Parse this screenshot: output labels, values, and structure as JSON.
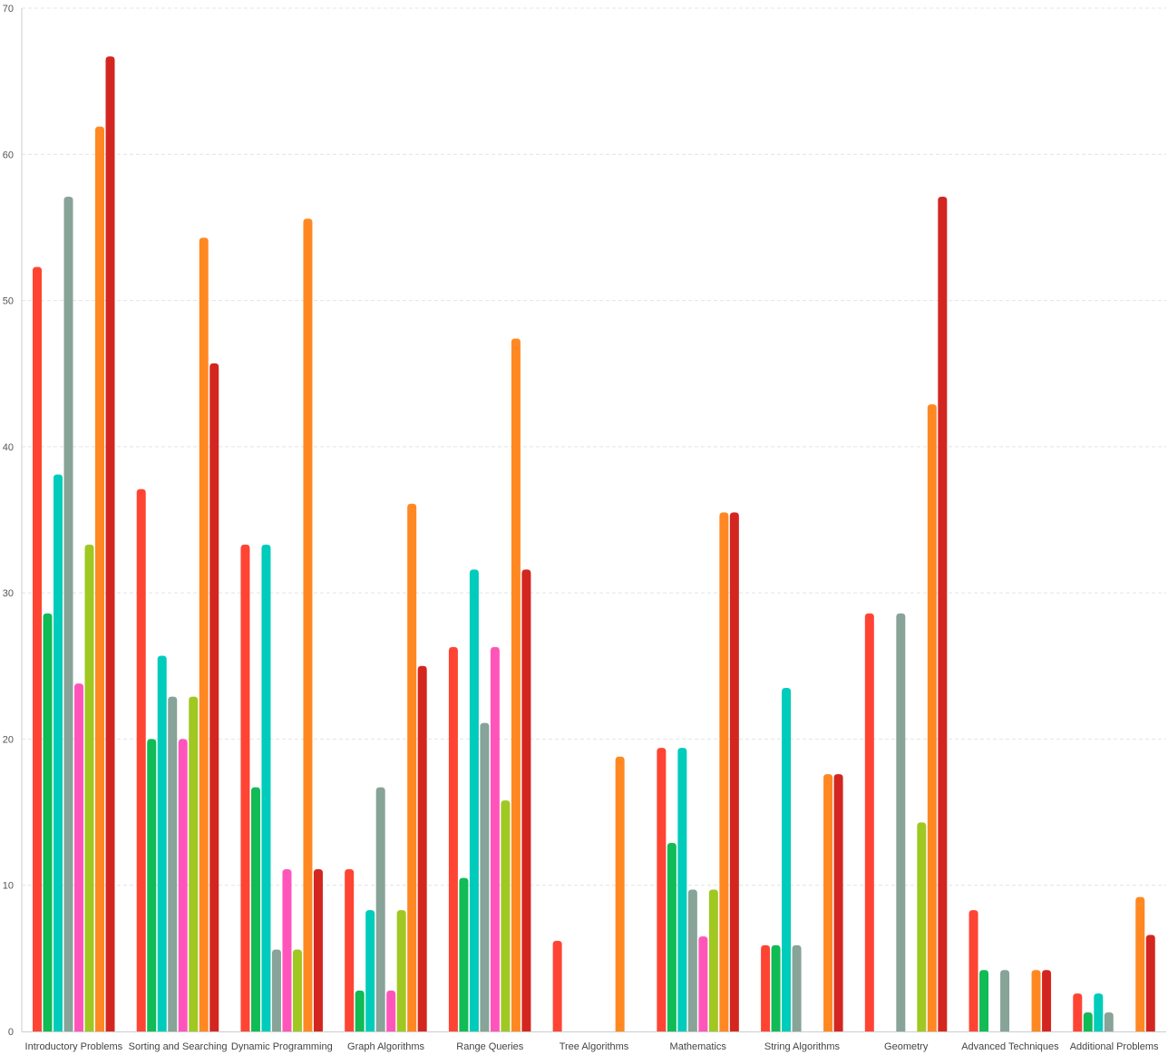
{
  "chart_data": {
    "type": "bar",
    "categories": [
      "Introductory Problems",
      "Sorting and Searching",
      "Dynamic Programming",
      "Graph Algorithms",
      "Range Queries",
      "Tree Algorithms",
      "Mathematics",
      "String Algorithms",
      "Geometry",
      "Advanced Techniques",
      "Additional Problems"
    ],
    "ylim": [
      0,
      70
    ],
    "yticks": [
      "0",
      "10",
      "20",
      "30",
      "40",
      "50",
      "60",
      "70"
    ],
    "grid": true,
    "legend": "none",
    "series": [
      {
        "color": "#ff4433",
        "values": [
          52.3,
          37.1,
          33.3,
          11.1,
          26.3,
          6.2,
          19.4,
          5.9,
          28.6,
          8.3,
          2.6
        ]
      },
      {
        "color": "#11bb55",
        "values": [
          28.6,
          20.0,
          16.7,
          2.8,
          10.5,
          0,
          12.9,
          5.9,
          0,
          4.2,
          1.3
        ]
      },
      {
        "color": "#00ccbb",
        "values": [
          38.1,
          25.7,
          33.3,
          8.3,
          31.6,
          0,
          19.4,
          23.5,
          0,
          0,
          2.6
        ]
      },
      {
        "color": "#88a398",
        "values": [
          57.1,
          22.9,
          5.6,
          16.7,
          21.1,
          0,
          9.7,
          5.9,
          28.6,
          4.2,
          1.3
        ]
      },
      {
        "color": "#ff55bb",
        "values": [
          23.8,
          20.0,
          11.1,
          2.8,
          26.3,
          0,
          6.5,
          0,
          0,
          0,
          0
        ]
      },
      {
        "color": "#a0c822",
        "values": [
          33.3,
          22.9,
          5.6,
          8.3,
          15.8,
          0,
          9.7,
          0,
          14.3,
          0,
          0
        ]
      },
      {
        "color": "#ff8822",
        "values": [
          61.9,
          54.3,
          55.6,
          36.1,
          47.4,
          18.8,
          35.5,
          17.6,
          42.9,
          4.2,
          9.2
        ]
      },
      {
        "color": "#d42620",
        "values": [
          66.7,
          45.7,
          11.1,
          25.0,
          31.6,
          0,
          35.5,
          17.6,
          57.1,
          4.2,
          6.6
        ]
      }
    ]
  }
}
